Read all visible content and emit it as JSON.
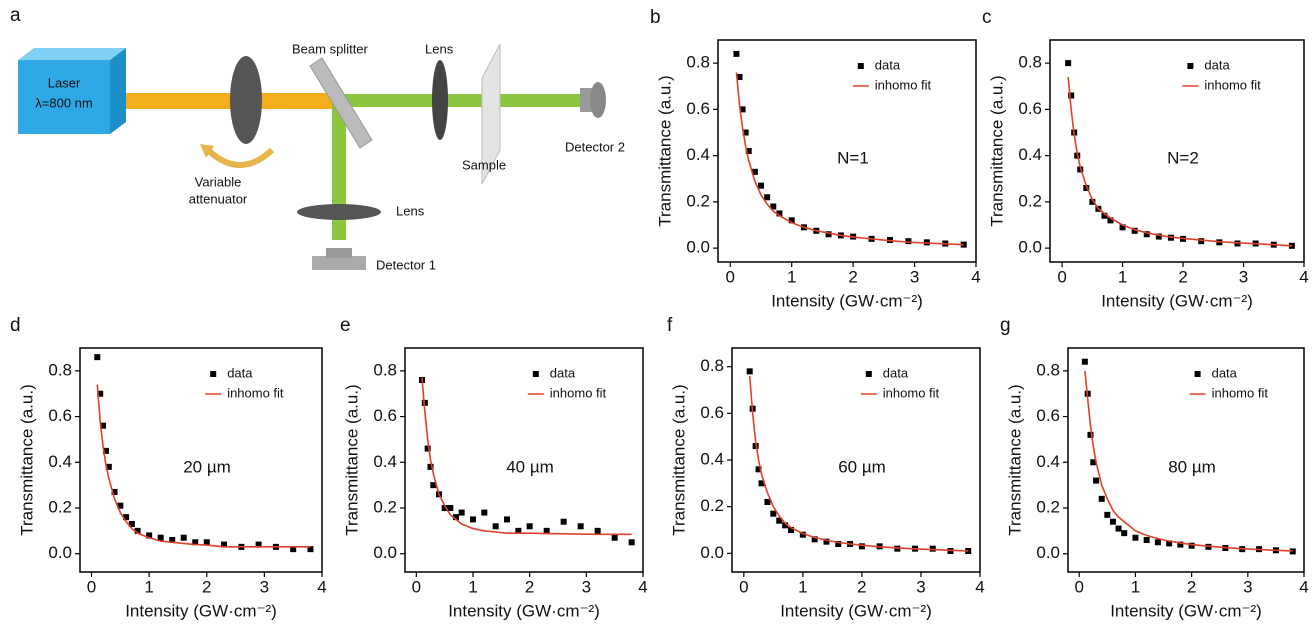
{
  "diagram": {
    "panel": "a",
    "laser": "Laser",
    "wavelength": "λ=800 nm",
    "attenuator_1": "Variable",
    "attenuator_2": "attenuator",
    "beam_splitter": "Beam splitter",
    "lens_top": "Lens",
    "lens_bottom": "Lens",
    "sample": "Sample",
    "detector_1": "Detector 1",
    "detector_2": "Detector 2"
  },
  "chart_data": [
    {
      "type": "scatter",
      "panel": "b",
      "annotation": "N=1",
      "xlabel": "Intensity (GW·cm⁻²)",
      "ylabel": "Transmittance (a.u.)",
      "xlim": [
        -0.2,
        4
      ],
      "ylim": [
        -0.06,
        0.9
      ],
      "xticks": [
        0,
        1,
        2,
        3,
        4
      ],
      "yticks": [
        {
          "value": 0,
          "label": "0.0"
        },
        0.2,
        0.4,
        0.6,
        0.8
      ],
      "grid": false,
      "x": [
        0.1,
        0.15,
        0.2,
        0.25,
        0.3,
        0.4,
        0.5,
        0.6,
        0.7,
        0.8,
        1.0,
        1.2,
        1.4,
        1.6,
        1.8,
        2.0,
        2.3,
        2.6,
        2.9,
        3.2,
        3.5,
        3.8
      ],
      "series": [
        {
          "name": "data",
          "color": "#000000",
          "marker": "square",
          "values": [
            0.84,
            0.74,
            0.6,
            0.5,
            0.42,
            0.33,
            0.27,
            0.22,
            0.18,
            0.15,
            0.12,
            0.09,
            0.075,
            0.06,
            0.055,
            0.05,
            0.04,
            0.035,
            0.03,
            0.025,
            0.02,
            0.015
          ]
        },
        {
          "name": "inhomo fit",
          "color": "#e0402a",
          "marker": "line",
          "values": [
            0.76,
            0.62,
            0.52,
            0.44,
            0.38,
            0.29,
            0.23,
            0.19,
            0.16,
            0.14,
            0.11,
            0.09,
            0.075,
            0.065,
            0.055,
            0.048,
            0.04,
            0.032,
            0.026,
            0.022,
            0.018,
            0.015
          ]
        }
      ]
    },
    {
      "type": "scatter",
      "panel": "c",
      "annotation": "N=2",
      "xlabel": "Intensity (GW·cm⁻²)",
      "ylabel": "Transmittance (a.u.)",
      "xlim": [
        -0.2,
        4
      ],
      "ylim": [
        -0.06,
        0.9
      ],
      "xticks": [
        0,
        1,
        2,
        3,
        4
      ],
      "yticks": [
        {
          "value": 0,
          "label": "0.0"
        },
        0.2,
        0.4,
        0.6,
        0.8
      ],
      "grid": false,
      "x": [
        0.1,
        0.15,
        0.2,
        0.25,
        0.3,
        0.4,
        0.5,
        0.6,
        0.7,
        0.8,
        1.0,
        1.2,
        1.4,
        1.6,
        1.8,
        2.0,
        2.3,
        2.6,
        2.9,
        3.2,
        3.5,
        3.8
      ],
      "series": [
        {
          "name": "data",
          "color": "#000000",
          "marker": "square",
          "values": [
            0.8,
            0.66,
            0.5,
            0.4,
            0.34,
            0.26,
            0.2,
            0.17,
            0.14,
            0.12,
            0.09,
            0.075,
            0.06,
            0.05,
            0.045,
            0.04,
            0.03,
            0.025,
            0.02,
            0.02,
            0.015,
            0.01
          ]
        },
        {
          "name": "inhomo fit",
          "color": "#e0402a",
          "marker": "line",
          "values": [
            0.74,
            0.6,
            0.49,
            0.41,
            0.35,
            0.27,
            0.21,
            0.17,
            0.15,
            0.13,
            0.1,
            0.08,
            0.066,
            0.056,
            0.048,
            0.042,
            0.035,
            0.028,
            0.023,
            0.019,
            0.015,
            0.01
          ]
        }
      ]
    },
    {
      "type": "scatter",
      "panel": "d",
      "annotation": "20 µm",
      "xlabel": "Intensity (GW·cm⁻²)",
      "ylabel": "Transmittance (a.u.)",
      "xlim": [
        -0.2,
        4
      ],
      "ylim": [
        -0.08,
        0.9
      ],
      "xticks": [
        0,
        1,
        2,
        3,
        4
      ],
      "yticks": [
        {
          "value": 0,
          "label": "0.0"
        },
        0.2,
        0.4,
        0.6,
        0.8
      ],
      "grid": false,
      "x": [
        0.1,
        0.15,
        0.2,
        0.25,
        0.3,
        0.4,
        0.5,
        0.6,
        0.7,
        0.8,
        1.0,
        1.2,
        1.4,
        1.6,
        1.8,
        2.0,
        2.3,
        2.6,
        2.9,
        3.2,
        3.5,
        3.8
      ],
      "series": [
        {
          "name": "data",
          "color": "#000000",
          "marker": "square",
          "values": [
            0.86,
            0.7,
            0.56,
            0.45,
            0.38,
            0.27,
            0.21,
            0.16,
            0.13,
            0.1,
            0.08,
            0.07,
            0.06,
            0.07,
            0.05,
            0.05,
            0.04,
            0.03,
            0.04,
            0.03,
            0.02,
            0.02
          ]
        },
        {
          "name": "inhomo fit",
          "color": "#e0402a",
          "marker": "line",
          "values": [
            0.74,
            0.58,
            0.47,
            0.39,
            0.33,
            0.24,
            0.18,
            0.14,
            0.11,
            0.09,
            0.07,
            0.055,
            0.05,
            0.045,
            0.04,
            0.038,
            0.03,
            0.03,
            0.03,
            0.03,
            0.03,
            0.03
          ]
        }
      ]
    },
    {
      "type": "scatter",
      "panel": "e",
      "annotation": "40 µm",
      "xlabel": "Intensity (GW·cm⁻²)",
      "ylabel": "Transmittance (a.u.)",
      "xlim": [
        -0.2,
        4
      ],
      "ylim": [
        -0.08,
        0.9
      ],
      "xticks": [
        0,
        1,
        2,
        3,
        4
      ],
      "yticks": [
        {
          "value": 0,
          "label": "0.0"
        },
        0.2,
        0.4,
        0.6,
        0.8
      ],
      "grid": false,
      "x": [
        0.1,
        0.15,
        0.2,
        0.25,
        0.3,
        0.4,
        0.5,
        0.6,
        0.7,
        0.8,
        1.0,
        1.2,
        1.4,
        1.6,
        1.8,
        2.0,
        2.3,
        2.6,
        2.9,
        3.2,
        3.5,
        3.8
      ],
      "series": [
        {
          "name": "data",
          "color": "#000000",
          "marker": "square",
          "values": [
            0.76,
            0.66,
            0.46,
            0.38,
            0.3,
            0.26,
            0.2,
            0.2,
            0.16,
            0.18,
            0.15,
            0.18,
            0.12,
            0.15,
            0.1,
            0.12,
            0.1,
            0.14,
            0.12,
            0.1,
            0.07,
            0.05
          ]
        },
        {
          "name": "inhomo fit",
          "color": "#e0402a",
          "marker": "line",
          "values": [
            0.77,
            0.62,
            0.5,
            0.41,
            0.35,
            0.26,
            0.21,
            0.17,
            0.15,
            0.13,
            0.11,
            0.1,
            0.095,
            0.09,
            0.09,
            0.09,
            0.088,
            0.087,
            0.086,
            0.085,
            0.085,
            0.085
          ]
        }
      ]
    },
    {
      "type": "scatter",
      "panel": "f",
      "annotation": "60 µm",
      "xlabel": "Intensity (GW·cm⁻²)",
      "ylabel": "Transmittance (a.u.)",
      "xlim": [
        -0.2,
        4
      ],
      "ylim": [
        -0.08,
        0.88
      ],
      "xticks": [
        0,
        1,
        2,
        3,
        4
      ],
      "yticks": [
        {
          "value": 0,
          "label": "0.0"
        },
        0.2,
        0.4,
        0.6,
        0.8
      ],
      "grid": false,
      "x": [
        0.1,
        0.15,
        0.2,
        0.25,
        0.3,
        0.4,
        0.5,
        0.6,
        0.7,
        0.8,
        1.0,
        1.2,
        1.4,
        1.6,
        1.8,
        2.0,
        2.3,
        2.6,
        2.9,
        3.2,
        3.5,
        3.8
      ],
      "series": [
        {
          "name": "data",
          "color": "#000000",
          "marker": "square",
          "values": [
            0.78,
            0.62,
            0.46,
            0.36,
            0.3,
            0.22,
            0.17,
            0.14,
            0.12,
            0.1,
            0.08,
            0.06,
            0.05,
            0.04,
            0.04,
            0.03,
            0.03,
            0.02,
            0.02,
            0.02,
            0.01,
            0.01
          ]
        },
        {
          "name": "inhomo fit",
          "color": "#e0402a",
          "marker": "line",
          "values": [
            0.76,
            0.6,
            0.48,
            0.4,
            0.34,
            0.26,
            0.2,
            0.16,
            0.13,
            0.11,
            0.085,
            0.068,
            0.056,
            0.047,
            0.04,
            0.035,
            0.028,
            0.023,
            0.019,
            0.016,
            0.013,
            0.01
          ]
        }
      ]
    },
    {
      "type": "scatter",
      "panel": "g",
      "annotation": "80 µm",
      "xlabel": "Intensity (GW·cm⁻²)",
      "ylabel": "Transmittance (a.u.)",
      "xlim": [
        -0.2,
        4
      ],
      "ylim": [
        -0.08,
        0.9
      ],
      "xticks": [
        0,
        1,
        2,
        3,
        4
      ],
      "yticks": [
        {
          "value": 0,
          "label": "0.0"
        },
        0.2,
        0.4,
        0.6,
        0.8
      ],
      "grid": false,
      "x": [
        0.1,
        0.15,
        0.2,
        0.25,
        0.3,
        0.4,
        0.5,
        0.6,
        0.7,
        0.8,
        1.0,
        1.2,
        1.4,
        1.6,
        1.8,
        2.0,
        2.3,
        2.6,
        2.9,
        3.2,
        3.5,
        3.8
      ],
      "series": [
        {
          "name": "data",
          "color": "#000000",
          "marker": "square",
          "values": [
            0.84,
            0.7,
            0.52,
            0.4,
            0.32,
            0.24,
            0.17,
            0.14,
            0.11,
            0.09,
            0.07,
            0.06,
            0.05,
            0.045,
            0.04,
            0.035,
            0.03,
            0.025,
            0.02,
            0.02,
            0.015,
            0.01
          ]
        },
        {
          "name": "inhomo fit",
          "color": "#e0402a",
          "marker": "line",
          "values": [
            0.8,
            0.68,
            0.56,
            0.47,
            0.4,
            0.3,
            0.24,
            0.19,
            0.16,
            0.14,
            0.1,
            0.08,
            0.066,
            0.055,
            0.047,
            0.04,
            0.033,
            0.027,
            0.022,
            0.018,
            0.015,
            0.012
          ]
        }
      ]
    }
  ]
}
